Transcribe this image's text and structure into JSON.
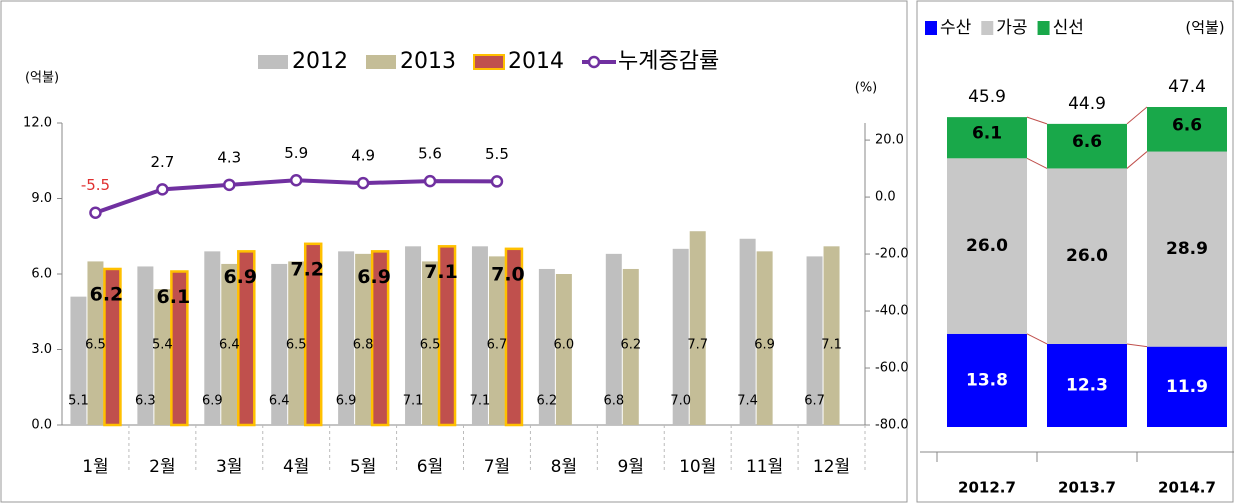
{
  "chart_data": [
    {
      "type": "bar",
      "y_label": "(억불)",
      "y2_label": "(%)",
      "categories": [
        "1월",
        "2월",
        "3월",
        "4월",
        "5월",
        "6월",
        "7월",
        "8월",
        "9월",
        "10월",
        "11월",
        "12월"
      ],
      "series": [
        {
          "name": "2012",
          "color": "#bfbfbf",
          "values": [
            5.1,
            6.3,
            6.9,
            6.4,
            6.9,
            7.1,
            7.1,
            6.2,
            6.8,
            7.0,
            7.4,
            6.7
          ],
          "value_labels": [
            "5.1",
            "6.3",
            "6.9",
            "6.4",
            "6.9",
            "7.1",
            "7.1",
            "6.2",
            "6.8",
            "7.0",
            "7.4",
            "6.7"
          ]
        },
        {
          "name": "2013",
          "color": "#c4bd97",
          "values": [
            6.5,
            5.4,
            6.4,
            6.5,
            6.8,
            6.5,
            6.7,
            6.0,
            6.2,
            7.7,
            6.9,
            7.1
          ],
          "value_labels": [
            "6.5",
            "5.4",
            "6.4",
            "6.5",
            "6.8",
            "6.5",
            "6.7",
            "6.0",
            "6.2",
            "7.7",
            "6.9",
            "7.1"
          ]
        },
        {
          "name": "2014",
          "color": "#c0504d",
          "edgecolor": "#ffc000",
          "values": [
            6.2,
            6.1,
            6.9,
            7.2,
            6.9,
            7.1,
            7.0,
            null,
            null,
            null,
            null,
            null
          ],
          "value_labels": [
            "6.2",
            "6.1",
            "6.9",
            "7.2",
            "6.9",
            "7.1",
            "7.0",
            null,
            null,
            null,
            null,
            null
          ]
        },
        {
          "name": "누계증감률",
          "type": "line",
          "axis": "y2",
          "color": "#7030a0",
          "values": [
            -5.5,
            2.7,
            4.3,
            5.9,
            4.9,
            5.6,
            5.5,
            null,
            null,
            null,
            null,
            null
          ]
        }
      ],
      "ylim": [
        0,
        12
      ],
      "yticks": [
        {
          "value": 0,
          "label": "0.0"
        },
        {
          "value": 3,
          "label": "3.0"
        },
        {
          "value": 6,
          "label": "6.0"
        },
        {
          "value": 9,
          "label": "9.0"
        },
        {
          "value": 12,
          "label": "12.0"
        }
      ],
      "y2lim": [
        -80,
        26
      ],
      "y2ticks": [
        {
          "value": -80,
          "label": "-80.0"
        },
        {
          "value": -60,
          "label": "-60.0"
        },
        {
          "value": -40,
          "label": "-40.0"
        },
        {
          "value": -20,
          "label": "-20.0"
        },
        {
          "value": 0,
          "label": "0.0"
        },
        {
          "value": 20,
          "label": "20.0"
        }
      ]
    },
    {
      "type": "stacked_bar",
      "y_label": "(억불)",
      "categories": [
        "2012.7",
        "2013.7",
        "2014.7"
      ],
      "series": [
        {
          "name": "수산",
          "color": "#0000ff",
          "values": [
            13.8,
            12.3,
            11.9
          ],
          "value_labels": [
            "13.8",
            "12.3",
            "11.9"
          ]
        },
        {
          "name": "가공",
          "color": "#c8c8c8",
          "values": [
            26.0,
            26.0,
            28.9
          ],
          "value_labels": [
            "26.0",
            "26.0",
            "28.9"
          ]
        },
        {
          "name": "신선",
          "color": "#19a84a",
          "values": [
            6.1,
            6.6,
            6.6
          ],
          "value_labels": [
            "6.1",
            "6.6",
            "6.6"
          ]
        }
      ],
      "totals": [
        45.9,
        44.9,
        47.4
      ]
    }
  ]
}
